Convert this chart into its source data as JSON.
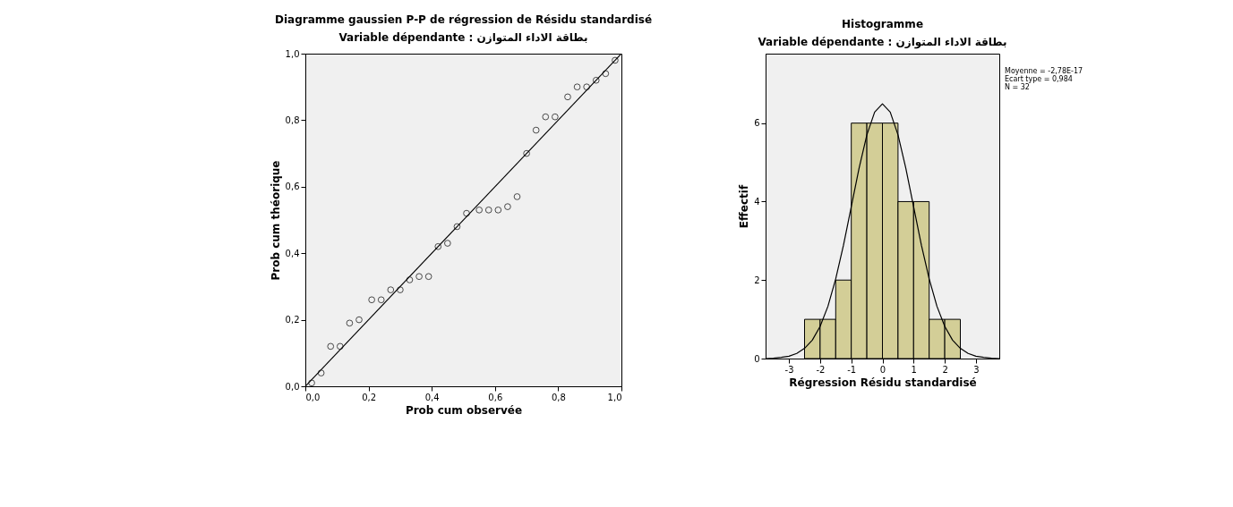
{
  "chart_data": [
    {
      "type": "scatter",
      "title": "Diagramme gaussien P-P de régression de Résidu standardisé",
      "subtitle": "Variable dépendante : بطاقة الاداء المتوازن",
      "xlabel": "Prob cum observée",
      "ylabel": "Prob cum théorique",
      "xlim": [
        0,
        1
      ],
      "ylim": [
        0,
        1
      ],
      "xticks": [
        {
          "value": 0,
          "label": "0,0"
        },
        {
          "value": 0.2,
          "label": "0,2"
        },
        {
          "value": 0.4,
          "label": "0,4"
        },
        {
          "value": 0.6,
          "label": "0,6"
        },
        {
          "value": 0.8,
          "label": "0,8"
        },
        {
          "value": 1,
          "label": "1,0"
        }
      ],
      "yticks": [
        {
          "value": 0,
          "label": "0,0"
        },
        {
          "value": 0.2,
          "label": "0,2"
        },
        {
          "value": 0.4,
          "label": "0,4"
        },
        {
          "value": 0.6,
          "label": "0,6"
        },
        {
          "value": 0.8,
          "label": "0,8"
        },
        {
          "value": 1,
          "label": "1,0"
        }
      ],
      "grid": false,
      "series": [
        {
          "marker": "circle",
          "color": "#000000",
          "x": [
            0.02,
            0.05,
            0.08,
            0.11,
            0.14,
            0.17,
            0.21,
            0.24,
            0.27,
            0.3,
            0.33,
            0.36,
            0.39,
            0.42,
            0.45,
            0.48,
            0.51,
            0.55,
            0.58,
            0.61,
            0.64,
            0.67,
            0.7,
            0.73,
            0.76,
            0.79,
            0.83,
            0.86,
            0.89,
            0.92,
            0.95,
            0.98
          ],
          "values": [
            0.01,
            0.04,
            0.12,
            0.12,
            0.19,
            0.2,
            0.26,
            0.26,
            0.29,
            0.29,
            0.32,
            0.33,
            0.33,
            0.42,
            0.43,
            0.48,
            0.52,
            0.53,
            0.53,
            0.53,
            0.54,
            0.57,
            0.7,
            0.77,
            0.81,
            0.81,
            0.87,
            0.9,
            0.9,
            0.92,
            0.94,
            0.98
          ]
        },
        {
          "type": "line",
          "color": "#000000",
          "x": [
            0,
            1
          ],
          "values": [
            0,
            1
          ]
        }
      ]
    },
    {
      "type": "histogram",
      "title": "Histogramme",
      "subtitle": "Variable dépendante : بطاقة الاداء المتوازن",
      "xlabel": "Régression Résidu standardisé",
      "ylabel": "Effectif",
      "xlim": [
        -3.75,
        3.75
      ],
      "ylim": [
        0,
        7.77
      ],
      "xticks": [
        -3,
        -2,
        -1,
        0,
        1,
        2,
        3
      ],
      "yticks": [
        0,
        2,
        4,
        6
      ],
      "grid": false,
      "annotations": [
        "Moyenne = -2,78E-17",
        "Ecart type = 0,984",
        "N = 32"
      ],
      "series": [
        {
          "color": "#d3ce97",
          "bins": [
            -2.5,
            -2,
            -1.5,
            -1,
            -0.5,
            0,
            0.5,
            1,
            1.5,
            2,
            2.5
          ],
          "values": [
            1,
            1,
            2,
            6,
            6,
            6,
            4,
            4,
            1,
            1
          ]
        },
        {
          "type": "line",
          "color": "#000000",
          "x": [
            -3.75,
            -3.5,
            -3.25,
            -3,
            -2.75,
            -2.5,
            -2.25,
            -2,
            -1.75,
            -1.5,
            -1.25,
            -1,
            -0.75,
            -0.5,
            -0.25,
            0,
            0.25,
            0.5,
            0.75,
            1,
            1.25,
            1.5,
            1.75,
            2,
            2.25,
            2.5,
            2.75,
            3,
            3.25,
            3.5,
            3.75
          ],
          "values": [
            0,
            0.01,
            0.03,
            0.06,
            0.13,
            0.26,
            0.47,
            0.82,
            1.33,
            2.03,
            2.89,
            3.87,
            4.85,
            5.7,
            6.28,
            6.49,
            6.28,
            5.7,
            4.85,
            3.87,
            2.89,
            2.03,
            1.33,
            0.82,
            0.47,
            0.26,
            0.13,
            0.06,
            0.03,
            0.01,
            0
          ]
        }
      ]
    }
  ]
}
